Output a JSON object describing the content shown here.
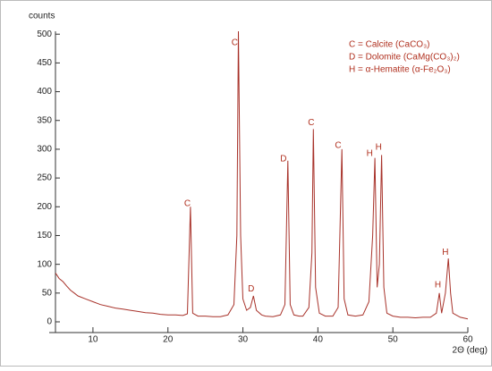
{
  "chart_data": {
    "type": "line",
    "ylabel": "counts",
    "xlabel": "2Θ (deg)",
    "color": "#a8322a",
    "xlim": [
      5,
      60
    ],
    "xticks": [
      10,
      20,
      30,
      40,
      50,
      60
    ],
    "ylim": [
      0,
      505
    ],
    "yticks": [
      0,
      50,
      100,
      150,
      200,
      250,
      300,
      350,
      400,
      450,
      500
    ],
    "x": [
      5,
      5.5,
      6,
      6.5,
      7,
      7.5,
      8,
      9,
      10,
      11,
      12,
      13,
      14,
      15,
      16,
      17,
      18,
      19,
      20,
      21,
      22,
      22.6,
      23.0,
      23.3,
      24,
      25,
      26,
      27,
      28,
      28.8,
      29.2,
      29.4,
      29.7,
      30,
      30.5,
      31.0,
      31.4,
      31.8,
      32.5,
      33,
      34,
      35,
      35.6,
      36.0,
      36.3,
      36.8,
      37.5,
      38,
      38.8,
      39.2,
      39.4,
      39.7,
      40.2,
      41,
      42,
      42.7,
      43.2,
      43.5,
      44,
      45,
      46,
      46.8,
      47.3,
      47.6,
      47.9,
      48.2,
      48.5,
      48.8,
      49.2,
      50,
      51,
      52,
      53,
      54,
      55,
      55.8,
      56.2,
      56.5,
      57.0,
      57.4,
      57.7,
      58,
      59,
      60
    ],
    "values": [
      85,
      75,
      70,
      62,
      55,
      50,
      45,
      40,
      35,
      30,
      27,
      24,
      22,
      20,
      18,
      16,
      15,
      13,
      12,
      12,
      11,
      14,
      200,
      15,
      10,
      10,
      9,
      9,
      12,
      30,
      150,
      505,
      150,
      40,
      20,
      25,
      45,
      20,
      12,
      10,
      9,
      12,
      30,
      280,
      30,
      12,
      10,
      10,
      25,
      120,
      335,
      60,
      15,
      10,
      10,
      25,
      300,
      40,
      12,
      10,
      12,
      35,
      150,
      285,
      60,
      100,
      290,
      60,
      15,
      10,
      8,
      8,
      7,
      8,
      8,
      15,
      50,
      15,
      50,
      110,
      50,
      15,
      8,
      5
    ],
    "legend_lines": [
      "C = Calcite (CaCO₃)",
      "D = Dolomite (CaMg(CO₃)₂)",
      "H = α-Hematite (α-Fe₂O₃)"
    ],
    "peaks": [
      {
        "label": "C",
        "x": 22.6,
        "y": 205
      },
      {
        "label": "C",
        "x": 28.9,
        "y": 485
      },
      {
        "label": "D",
        "x": 31.1,
        "y": 57
      },
      {
        "label": "D",
        "x": 35.4,
        "y": 283
      },
      {
        "label": "C",
        "x": 39.1,
        "y": 346
      },
      {
        "label": "C",
        "x": 42.7,
        "y": 306
      },
      {
        "label": "H",
        "x": 46.9,
        "y": 292
      },
      {
        "label": "H",
        "x": 48.1,
        "y": 303
      },
      {
        "label": "H",
        "x": 56.0,
        "y": 64
      },
      {
        "label": "H",
        "x": 57.0,
        "y": 121
      }
    ]
  }
}
